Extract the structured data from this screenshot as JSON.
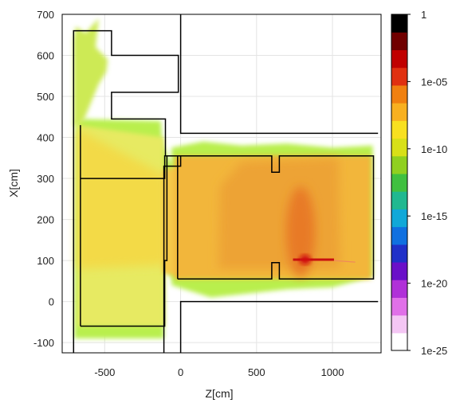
{
  "chart_data": {
    "type": "heatmap",
    "title": "",
    "xlabel": "Z[cm]",
    "ylabel": "X[cm]",
    "xlim": [
      -780,
      1320
    ],
    "ylim": [
      -125,
      700
    ],
    "xticks": [
      -500,
      0,
      500,
      1000
    ],
    "xtick_labels": [
      "-500",
      "0",
      "500",
      "1000"
    ],
    "yticks": [
      -100,
      0,
      100,
      200,
      300,
      400,
      500,
      600,
      700
    ],
    "ytick_labels": [
      "-100",
      "0",
      "100",
      "200",
      "300",
      "400",
      "500",
      "600",
      "700"
    ],
    "grid": true,
    "colorbar": {
      "scale": "log",
      "range": [
        1e-25,
        1
      ],
      "ticks": [
        1,
        1e-05,
        1e-10,
        1e-15,
        1e-20,
        1e-25
      ],
      "tick_labels": [
        "1",
        "1e-05",
        "1e-10",
        "1e-15",
        "1e-20",
        "1e-25"
      ],
      "colors": [
        "#ffffff",
        "#f4c6f4",
        "#e070e8",
        "#b030d8",
        "#6a10c8",
        "#2030c8",
        "#1070e0",
        "#10a8d8",
        "#20b890",
        "#40c040",
        "#90d020",
        "#d8e018",
        "#f8e020",
        "#f8b020",
        "#f08010",
        "#e03010",
        "#c00000",
        "#700000",
        "#000000"
      ]
    },
    "regions": [
      {
        "name": "outer-scatter",
        "log10_value": -11,
        "color": "#b9ef4e"
      },
      {
        "name": "upper-left-spray",
        "log10_value": -10.5,
        "color": "#cdea55"
      },
      {
        "name": "left-area",
        "log10_value": -9,
        "color": "#e7ea62"
      },
      {
        "name": "left-beam",
        "log10_value": -8,
        "color": "#f3da46"
      },
      {
        "name": "corridor",
        "log10_value": -7,
        "color": "#f6c84a"
      },
      {
        "name": "main-hall",
        "log10_value": -6.3,
        "color": "#f2b63a"
      },
      {
        "name": "inner-hall",
        "log10_value": -5.8,
        "color": "#eda335"
      },
      {
        "name": "hot-spot",
        "log10_value": -4.5,
        "color": "#e87a28"
      },
      {
        "name": "beam-target",
        "log10_value": -2,
        "color": "#c81010"
      }
    ]
  }
}
